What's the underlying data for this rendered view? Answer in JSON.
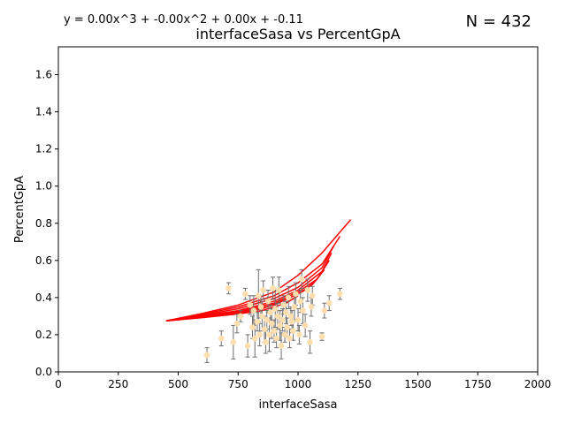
{
  "chart_data": {
    "type": "scatter",
    "title": "interfaceSasa vs PercentGpA",
    "equation": "y = 0.00x^3 + -0.00x^2 + 0.00x + -0.11",
    "n_label": "N = 432",
    "xlabel": "interfaceSasa",
    "ylabel": "PercentGpA",
    "xlim": [
      0,
      2000
    ],
    "ylim": [
      0,
      1.75
    ],
    "xticks": [
      0,
      250,
      500,
      750,
      1000,
      1250,
      1500,
      1750,
      2000
    ],
    "xtick_labels": [
      "0",
      "250",
      "500",
      "750",
      "1000",
      "1250",
      "1500",
      "1750",
      "2000"
    ],
    "yticks": [
      0.0,
      0.2,
      0.4,
      0.6,
      0.8,
      1.0,
      1.2,
      1.4,
      1.6
    ],
    "ytick_labels": [
      "0.0",
      "0.2",
      "0.4",
      "0.6",
      "0.8",
      "1.0",
      "1.2",
      "1.4",
      "1.6"
    ],
    "grid": false,
    "colors": {
      "points": "#ffdead",
      "errorbars": "#6e6e6e",
      "fit": "#ff0000",
      "axes": "#000000"
    },
    "points": [
      {
        "x": 620,
        "y": 0.09,
        "err": 0.04
      },
      {
        "x": 680,
        "y": 0.18,
        "err": 0.04
      },
      {
        "x": 710,
        "y": 0.45,
        "err": 0.03
      },
      {
        "x": 730,
        "y": 0.16,
        "err": 0.09
      },
      {
        "x": 745,
        "y": 0.26,
        "err": 0.05
      },
      {
        "x": 760,
        "y": 0.3,
        "err": 0.03
      },
      {
        "x": 780,
        "y": 0.42,
        "err": 0.03
      },
      {
        "x": 790,
        "y": 0.14,
        "err": 0.06
      },
      {
        "x": 800,
        "y": 0.36,
        "err": 0.05
      },
      {
        "x": 810,
        "y": 0.24,
        "err": 0.06
      },
      {
        "x": 815,
        "y": 0.33,
        "err": 0.08
      },
      {
        "x": 820,
        "y": 0.18,
        "err": 0.1
      },
      {
        "x": 830,
        "y": 0.27,
        "err": 0.05
      },
      {
        "x": 835,
        "y": 0.41,
        "err": 0.14
      },
      {
        "x": 840,
        "y": 0.2,
        "err": 0.06
      },
      {
        "x": 845,
        "y": 0.35,
        "err": 0.06
      },
      {
        "x": 850,
        "y": 0.3,
        "err": 0.08
      },
      {
        "x": 855,
        "y": 0.44,
        "err": 0.05
      },
      {
        "x": 860,
        "y": 0.23,
        "err": 0.07
      },
      {
        "x": 865,
        "y": 0.16,
        "err": 0.06
      },
      {
        "x": 870,
        "y": 0.28,
        "err": 0.05
      },
      {
        "x": 875,
        "y": 0.38,
        "err": 0.06
      },
      {
        "x": 880,
        "y": 0.2,
        "err": 0.09
      },
      {
        "x": 885,
        "y": 0.32,
        "err": 0.04
      },
      {
        "x": 890,
        "y": 0.26,
        "err": 0.08
      },
      {
        "x": 895,
        "y": 0.45,
        "err": 0.06
      },
      {
        "x": 900,
        "y": 0.22,
        "err": 0.06
      },
      {
        "x": 905,
        "y": 0.34,
        "err": 0.1
      },
      {
        "x": 910,
        "y": 0.18,
        "err": 0.05
      },
      {
        "x": 915,
        "y": 0.3,
        "err": 0.07
      },
      {
        "x": 920,
        "y": 0.44,
        "err": 0.07
      },
      {
        "x": 925,
        "y": 0.25,
        "err": 0.08
      },
      {
        "x": 930,
        "y": 0.14,
        "err": 0.07
      },
      {
        "x": 935,
        "y": 0.28,
        "err": 0.06
      },
      {
        "x": 940,
        "y": 0.36,
        "err": 0.05
      },
      {
        "x": 945,
        "y": 0.2,
        "err": 0.04
      },
      {
        "x": 950,
        "y": 0.32,
        "err": 0.06
      },
      {
        "x": 955,
        "y": 0.24,
        "err": 0.05
      },
      {
        "x": 960,
        "y": 0.4,
        "err": 0.06
      },
      {
        "x": 965,
        "y": 0.18,
        "err": 0.05
      },
      {
        "x": 970,
        "y": 0.3,
        "err": 0.05
      },
      {
        "x": 975,
        "y": 0.27,
        "err": 0.06
      },
      {
        "x": 980,
        "y": 0.22,
        "err": 0.05
      },
      {
        "x": 985,
        "y": 0.35,
        "err": 0.07
      },
      {
        "x": 990,
        "y": 0.42,
        "err": 0.06
      },
      {
        "x": 1000,
        "y": 0.28,
        "err": 0.06
      },
      {
        "x": 1005,
        "y": 0.2,
        "err": 0.05
      },
      {
        "x": 1010,
        "y": 0.38,
        "err": 0.06
      },
      {
        "x": 1015,
        "y": 0.5,
        "err": 0.05
      },
      {
        "x": 1020,
        "y": 0.33,
        "err": 0.07
      },
      {
        "x": 1030,
        "y": 0.25,
        "err": 0.06
      },
      {
        "x": 1040,
        "y": 0.44,
        "err": 0.06
      },
      {
        "x": 1050,
        "y": 0.16,
        "err": 0.06
      },
      {
        "x": 1055,
        "y": 0.35,
        "err": 0.05
      },
      {
        "x": 1060,
        "y": 0.41,
        "err": 0.05
      },
      {
        "x": 1100,
        "y": 0.19,
        "err": 0.02
      },
      {
        "x": 1110,
        "y": 0.33,
        "err": 0.04
      },
      {
        "x": 1130,
        "y": 0.37,
        "err": 0.04
      },
      {
        "x": 1175,
        "y": 0.42,
        "err": 0.03
      }
    ],
    "fit_curves": [
      {
        "x": [
          450,
          600,
          750,
          900,
          1000,
          1100,
          1220
        ],
        "y": [
          0.275,
          0.315,
          0.36,
          0.43,
          0.52,
          0.64,
          0.82
        ]
      },
      {
        "x": [
          450,
          600,
          750,
          900,
          1000,
          1100,
          1175
        ],
        "y": [
          0.275,
          0.31,
          0.35,
          0.41,
          0.48,
          0.58,
          0.73
        ]
      },
      {
        "x": [
          450,
          600,
          750,
          900,
          1000,
          1100,
          1150
        ],
        "y": [
          0.275,
          0.305,
          0.34,
          0.395,
          0.455,
          0.56,
          0.68
        ]
      },
      {
        "x": [
          450,
          600,
          750,
          900,
          1000,
          1100,
          1140
        ],
        "y": [
          0.275,
          0.3,
          0.33,
          0.38,
          0.44,
          0.54,
          0.64
        ]
      },
      {
        "x": [
          450,
          600,
          750,
          900,
          1000,
          1080,
          1130
        ],
        "y": [
          0.275,
          0.298,
          0.325,
          0.37,
          0.43,
          0.5,
          0.6
        ]
      },
      {
        "x": [
          450,
          600,
          750,
          900,
          1000,
          1060,
          1110
        ],
        "y": [
          0.275,
          0.296,
          0.32,
          0.36,
          0.42,
          0.47,
          0.55
        ]
      },
      {
        "x": [
          450,
          600,
          750,
          850,
          950,
          1030,
          1080
        ],
        "y": [
          0.275,
          0.294,
          0.316,
          0.34,
          0.39,
          0.44,
          0.5
        ]
      },
      {
        "x": [
          450,
          600,
          750,
          850,
          950,
          1000
        ],
        "y": [
          0.275,
          0.292,
          0.312,
          0.33,
          0.37,
          0.41
        ]
      }
    ]
  }
}
